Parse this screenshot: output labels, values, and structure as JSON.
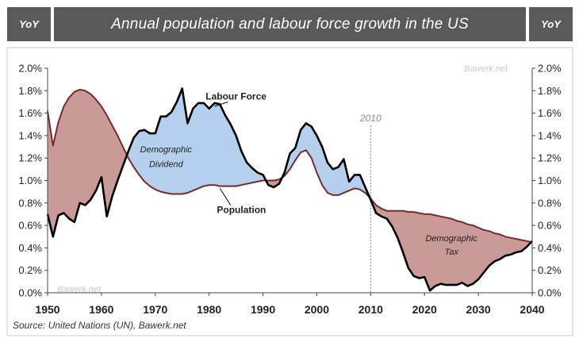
{
  "header": {
    "left_label": "YoY",
    "title": "Annual population and labour force growth in the US",
    "right_label": "YoY"
  },
  "watermarks": {
    "top": "Bawerk.net",
    "bottom": "Bawerk.net"
  },
  "source": "Source: United Nations (UN), Bawerk.net",
  "colors": {
    "population": "#7b2a2a",
    "labour_force": "#000000",
    "dividend_fill": "#b5cfee",
    "tax_fill": "#c99a97",
    "background": "#ffffff",
    "header": "#5a5a5a"
  },
  "chart_data": {
    "type": "line",
    "title": "Annual population and labour force growth in the US",
    "x_ticks": [
      1950,
      1960,
      1970,
      1980,
      1990,
      2000,
      2010,
      2020,
      2030,
      2040
    ],
    "y_ticks": [
      "0.0%",
      "0.2%",
      "0.4%",
      "0.6%",
      "0.8%",
      "1.0%",
      "1.2%",
      "1.4%",
      "1.6%",
      "1.8%",
      "2.0%"
    ],
    "xlim": [
      1950,
      2040
    ],
    "ylim": [
      0,
      2.0
    ],
    "grid": false,
    "reference_line": {
      "x": 2010,
      "label": "2010"
    },
    "annotations": [
      {
        "text": "Labour Force",
        "x": 1985,
        "y": 1.72,
        "target": "labour_force"
      },
      {
        "text": "Population",
        "x": 1986,
        "y": 0.71,
        "target": "population"
      },
      {
        "text": "Demographic",
        "x": 1972,
        "y": 1.25,
        "region": "dividend"
      },
      {
        "text": "Dividend",
        "x": 1972,
        "y": 1.12,
        "region": "dividend"
      },
      {
        "text": "Demographic",
        "x": 2025,
        "y": 0.46,
        "region": "tax"
      },
      {
        "text": "Tax",
        "x": 2025,
        "y": 0.34,
        "region": "tax"
      }
    ],
    "series": [
      {
        "name": "Population",
        "x": [
          1950,
          1951,
          1952,
          1953,
          1954,
          1955,
          1956,
          1957,
          1958,
          1959,
          1960,
          1961,
          1962,
          1963,
          1964,
          1965,
          1966,
          1967,
          1968,
          1969,
          1970,
          1971,
          1972,
          1973,
          1974,
          1975,
          1976,
          1977,
          1978,
          1979,
          1980,
          1981,
          1982,
          1983,
          1984,
          1985,
          1986,
          1987,
          1988,
          1989,
          1990,
          1991,
          1992,
          1993,
          1994,
          1995,
          1996,
          1997,
          1998,
          1999,
          2000,
          2001,
          2002,
          2003,
          2004,
          2005,
          2006,
          2007,
          2008,
          2009,
          2010,
          2011,
          2012,
          2013,
          2014,
          2015,
          2016,
          2017,
          2018,
          2019,
          2020,
          2021,
          2022,
          2023,
          2024,
          2025,
          2026,
          2027,
          2028,
          2029,
          2030,
          2031,
          2032,
          2033,
          2034,
          2035,
          2036,
          2037,
          2038,
          2039,
          2040
        ],
        "values": [
          1.62,
          1.31,
          1.52,
          1.66,
          1.74,
          1.79,
          1.81,
          1.8,
          1.77,
          1.72,
          1.66,
          1.58,
          1.49,
          1.4,
          1.3,
          1.2,
          1.12,
          1.05,
          0.99,
          0.95,
          0.92,
          0.9,
          0.89,
          0.88,
          0.88,
          0.88,
          0.89,
          0.91,
          0.93,
          0.95,
          0.96,
          0.96,
          0.95,
          0.95,
          0.95,
          0.95,
          0.96,
          0.97,
          0.98,
          0.99,
          1.0,
          1.0,
          1.0,
          1.01,
          1.04,
          1.1,
          1.18,
          1.25,
          1.27,
          1.2,
          1.07,
          0.96,
          0.89,
          0.87,
          0.87,
          0.89,
          0.91,
          0.93,
          0.92,
          0.89,
          0.84,
          0.78,
          0.75,
          0.73,
          0.73,
          0.73,
          0.73,
          0.72,
          0.72,
          0.71,
          0.7,
          0.7,
          0.69,
          0.68,
          0.67,
          0.66,
          0.64,
          0.63,
          0.61,
          0.6,
          0.58,
          0.56,
          0.55,
          0.53,
          0.52,
          0.5,
          0.49,
          0.48,
          0.47,
          0.46,
          0.45
        ]
      },
      {
        "name": "Labour Force",
        "x": [
          1950,
          1951,
          1952,
          1953,
          1954,
          1955,
          1956,
          1957,
          1958,
          1959,
          1960,
          1961,
          1962,
          1963,
          1964,
          1965,
          1966,
          1967,
          1968,
          1969,
          1970,
          1971,
          1972,
          1973,
          1974,
          1975,
          1976,
          1977,
          1978,
          1979,
          1980,
          1981,
          1982,
          1983,
          1984,
          1985,
          1986,
          1987,
          1988,
          1989,
          1990,
          1991,
          1992,
          1993,
          1994,
          1995,
          1996,
          1997,
          1998,
          1999,
          2000,
          2001,
          2002,
          2003,
          2004,
          2005,
          2006,
          2007,
          2008,
          2009,
          2010,
          2011,
          2012,
          2013,
          2014,
          2015,
          2016,
          2017,
          2018,
          2019,
          2020,
          2021,
          2022,
          2023,
          2024,
          2025,
          2026,
          2027,
          2028,
          2029,
          2030,
          2031,
          2032,
          2033,
          2034,
          2035,
          2036,
          2037,
          2038,
          2039,
          2040
        ],
        "values": [
          0.7,
          0.5,
          0.69,
          0.71,
          0.66,
          0.63,
          0.8,
          0.78,
          0.83,
          0.91,
          1.03,
          0.68,
          0.86,
          1.0,
          1.13,
          1.26,
          1.38,
          1.44,
          1.45,
          1.42,
          1.42,
          1.57,
          1.57,
          1.61,
          1.7,
          1.82,
          1.51,
          1.64,
          1.69,
          1.69,
          1.64,
          1.69,
          1.68,
          1.58,
          1.5,
          1.4,
          1.26,
          1.16,
          1.11,
          1.07,
          1.05,
          0.96,
          0.94,
          0.97,
          1.07,
          1.24,
          1.29,
          1.45,
          1.51,
          1.48,
          1.4,
          1.3,
          1.16,
          1.1,
          1.12,
          1.19,
          0.99,
          1.05,
          1.05,
          0.94,
          0.83,
          0.71,
          0.68,
          0.66,
          0.59,
          0.49,
          0.36,
          0.22,
          0.15,
          0.13,
          0.14,
          0.02,
          0.06,
          0.08,
          0.07,
          0.07,
          0.07,
          0.09,
          0.06,
          0.08,
          0.12,
          0.18,
          0.24,
          0.28,
          0.3,
          0.33,
          0.34,
          0.36,
          0.37,
          0.41,
          0.46
        ]
      }
    ]
  }
}
